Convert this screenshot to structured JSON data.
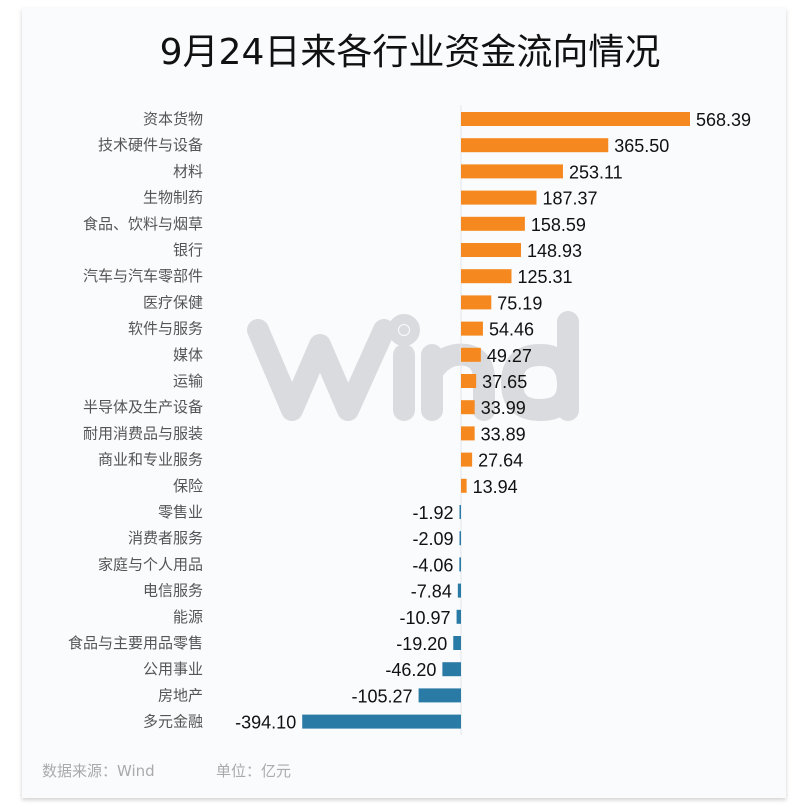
{
  "chart_data": {
    "type": "bar",
    "orientation": "horizontal",
    "title": "9月24日来各行业资金流向情况",
    "categories": [
      "资本货物",
      "技术硬件与设备",
      "材料",
      "生物制药",
      "食品、饮料与烟草",
      "银行",
      "汽车与汽车零部件",
      "医疗保健",
      "软件与服务",
      "媒体",
      "运输",
      "半导体及生产设备",
      "耐用消费品与服装",
      "商业和专业服务",
      "保险",
      "零售业",
      "消费者服务",
      "家庭与个人用品",
      "电信服务",
      "能源",
      "食品与主要用品零售",
      "公用事业",
      "房地产",
      "多元金融"
    ],
    "values": [
      568.39,
      365.5,
      253.11,
      187.37,
      158.59,
      148.93,
      125.31,
      75.19,
      54.46,
      49.27,
      37.65,
      33.99,
      33.89,
      27.64,
      13.94,
      -1.92,
      -2.09,
      -4.06,
      -7.84,
      -10.97,
      -19.2,
      -46.2,
      -105.27,
      -394.1
    ],
    "data_labels": [
      "568.39",
      "365.50",
      "253.11",
      "187.37",
      "158.59",
      "148.93",
      "125.31",
      "75.19",
      "54.46",
      "49.27",
      "37.65",
      "33.99",
      "33.89",
      "27.64",
      "13.94",
      "-1.92",
      "-2.09",
      "-4.06",
      "-7.84",
      "-10.97",
      "-19.20",
      "-46.20",
      "-105.27",
      "-394.10"
    ],
    "colors": {
      "positive": "#f5891f",
      "negative": "#2a7aa6"
    },
    "grid": false,
    "legend": "none"
  },
  "footer": {
    "source": "数据来源：Wind",
    "unit": "单位：亿元"
  },
  "watermark": "Wind"
}
